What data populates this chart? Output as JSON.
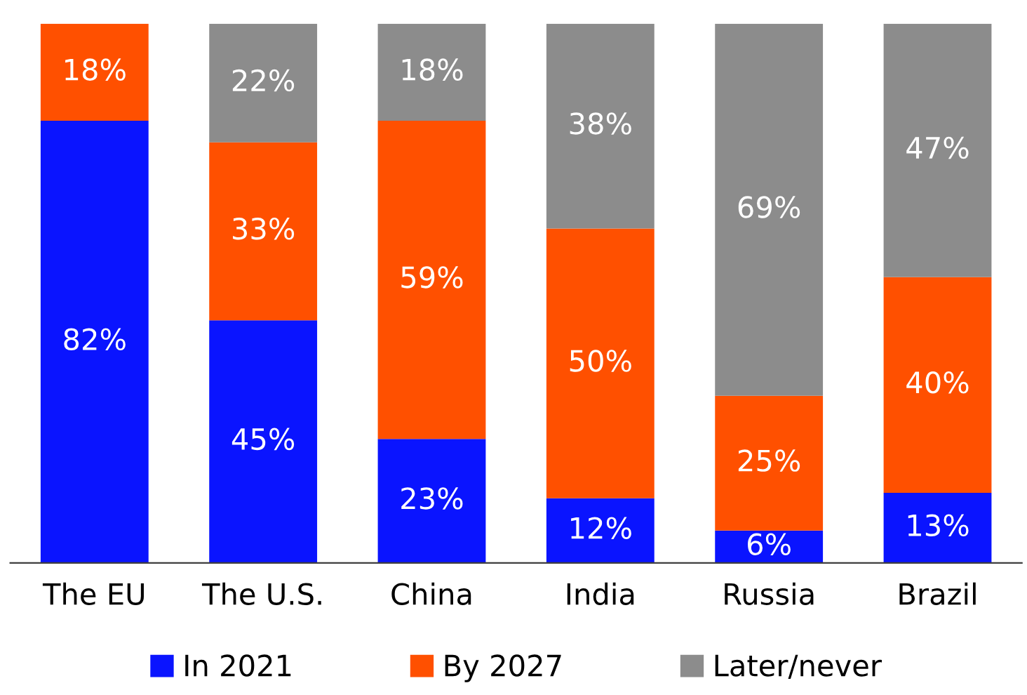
{
  "chart_data": {
    "type": "bar",
    "stacked": true,
    "categories": [
      "The EU",
      "The U.S.",
      "China",
      "India",
      "Russia",
      "Brazil"
    ],
    "series": [
      {
        "name": "In 2021",
        "color": "#0a14ff",
        "values": [
          82,
          45,
          23,
          12,
          6,
          13
        ],
        "value_labels": [
          "82%",
          "45%",
          "23%",
          "12%",
          "6%",
          "13%"
        ]
      },
      {
        "name": "By 2027",
        "color": "#ff5000",
        "values": [
          18,
          33,
          59,
          50,
          25,
          40
        ],
        "value_labels": [
          "18%",
          "33%",
          "59%",
          "50%",
          "25%",
          "40%"
        ]
      },
      {
        "name": "Later/never",
        "color": "#8c8c8c",
        "values": [
          null,
          22,
          18,
          38,
          69,
          47
        ],
        "value_labels": [
          null,
          "22%",
          "18%",
          "38%",
          "69%",
          "47%"
        ]
      }
    ],
    "legend": "bottom",
    "grid": false,
    "tick_labels": "x"
  }
}
